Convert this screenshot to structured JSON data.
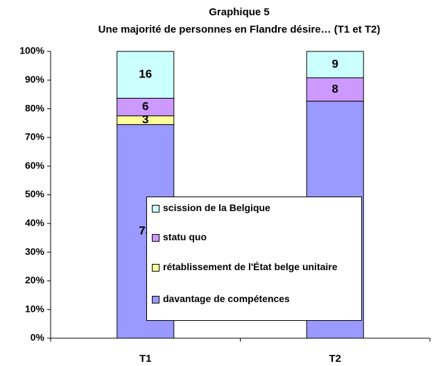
{
  "chart_data": {
    "type": "bar",
    "stack": "percent",
    "title": "Graphique 5",
    "subtitle": "Une majorité de personnes en Flandre désire… (T1 et T2)",
    "categories": [
      "T1",
      "T2"
    ],
    "series": [
      {
        "name": "davantage de compétences",
        "color": "#9999ff",
        "values": [
          73,
          81
        ]
      },
      {
        "name": "rétablissement de l'État belge unitaire",
        "color": "#ffff99",
        "values": [
          3,
          0
        ]
      },
      {
        "name": "statu quo",
        "color": "#cc99ff",
        "values": [
          6,
          8
        ]
      },
      {
        "name": "scission de la Belgique",
        "color": "#ccffff",
        "values": [
          16,
          9
        ]
      }
    ],
    "ylim": [
      0,
      100
    ],
    "yticks": [
      {
        "value": 0,
        "label": "0%"
      },
      {
        "value": 10,
        "label": "10%"
      },
      {
        "value": 20,
        "label": "20%"
      },
      {
        "value": 30,
        "label": "30%"
      },
      {
        "value": 40,
        "label": "40%"
      },
      {
        "value": 50,
        "label": "50%"
      },
      {
        "value": 60,
        "label": "60%"
      },
      {
        "value": 70,
        "label": "70%"
      },
      {
        "value": 80,
        "label": "80%"
      },
      {
        "value": 90,
        "label": "90%"
      },
      {
        "value": 100,
        "label": "100%"
      }
    ],
    "grid": false
  }
}
